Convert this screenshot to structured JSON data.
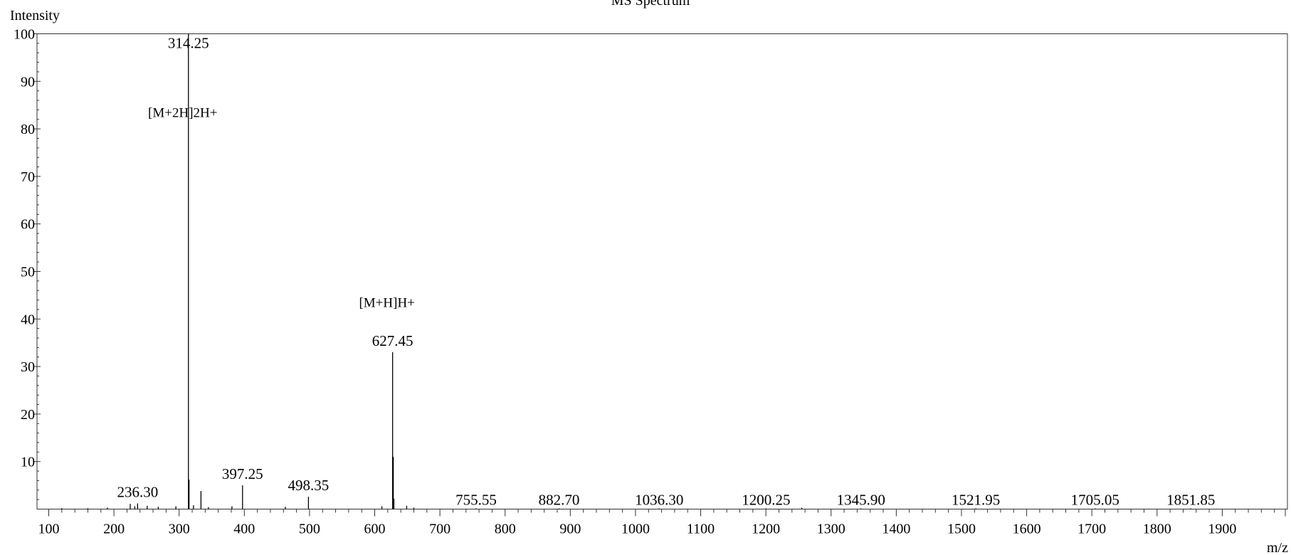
{
  "chart_data": {
    "type": "bar",
    "title": "MS Spectrum",
    "xlabel": "m/z",
    "ylabel": "Intensity",
    "xlim": [
      82,
      2000
    ],
    "ylim": [
      0,
      100
    ],
    "xticks": [
      100,
      200,
      300,
      400,
      500,
      600,
      700,
      800,
      900,
      1000,
      1100,
      1200,
      1300,
      1400,
      1500,
      1600,
      1700,
      1800,
      1900
    ],
    "yticks": [
      10,
      20,
      30,
      40,
      50,
      60,
      70,
      80,
      90,
      100
    ],
    "grid": false,
    "peaks": [
      {
        "mz": 314.25,
        "intensity": 100,
        "label": "314.25"
      },
      {
        "mz": 627.45,
        "intensity": 33,
        "label": "627.45"
      },
      {
        "mz": 397.25,
        "intensity": 5,
        "label": "397.25"
      },
      {
        "mz": 498.35,
        "intensity": 2.6,
        "label": "498.35"
      },
      {
        "mz": 236.3,
        "intensity": 1.2,
        "label": "236.30"
      },
      {
        "mz": 755.55,
        "intensity": 0.1,
        "label": "755.55"
      },
      {
        "mz": 882.7,
        "intensity": 0.1,
        "label": "882.70"
      },
      {
        "mz": 1036.3,
        "intensity": 0.1,
        "label": "1036.30"
      },
      {
        "mz": 1200.25,
        "intensity": 0.1,
        "label": "1200.25"
      },
      {
        "mz": 1345.9,
        "intensity": 0.1,
        "label": "1345.90"
      },
      {
        "mz": 1521.95,
        "intensity": 0.1,
        "label": "1521.95"
      },
      {
        "mz": 1705.05,
        "intensity": 0.1,
        "label": "1705.05"
      },
      {
        "mz": 1851.85,
        "intensity": 0.1,
        "label": "1851.85"
      },
      {
        "mz": 315.2,
        "intensity": 6.2
      },
      {
        "mz": 333.5,
        "intensity": 3.8
      },
      {
        "mz": 628.45,
        "intensity": 11
      },
      {
        "mz": 629.45,
        "intensity": 2.2
      },
      {
        "mz": 225,
        "intensity": 1.1
      },
      {
        "mz": 232,
        "intensity": 0.6
      },
      {
        "mz": 251,
        "intensity": 0.7
      },
      {
        "mz": 268,
        "intensity": 0.5
      },
      {
        "mz": 295,
        "intensity": 0.6
      },
      {
        "mz": 322,
        "intensity": 0.8
      },
      {
        "mz": 345,
        "intensity": 0.4
      },
      {
        "mz": 381,
        "intensity": 0.6
      },
      {
        "mz": 463,
        "intensity": 0.5
      },
      {
        "mz": 611,
        "intensity": 0.6
      },
      {
        "mz": 649,
        "intensity": 0.7
      },
      {
        "mz": 660,
        "intensity": 0.3
      },
      {
        "mz": 120,
        "intensity": 0.2
      },
      {
        "mz": 160,
        "intensity": 0.2
      },
      {
        "mz": 190,
        "intensity": 0.3
      },
      {
        "mz": 1255,
        "intensity": 0.3
      }
    ],
    "annotations": [
      {
        "text": "[M+2H]2H+",
        "mz": 314.25,
        "intensity": 82.5
      },
      {
        "text": "[M+H]H+",
        "mz": 627.45,
        "intensity": 42.5
      }
    ]
  }
}
